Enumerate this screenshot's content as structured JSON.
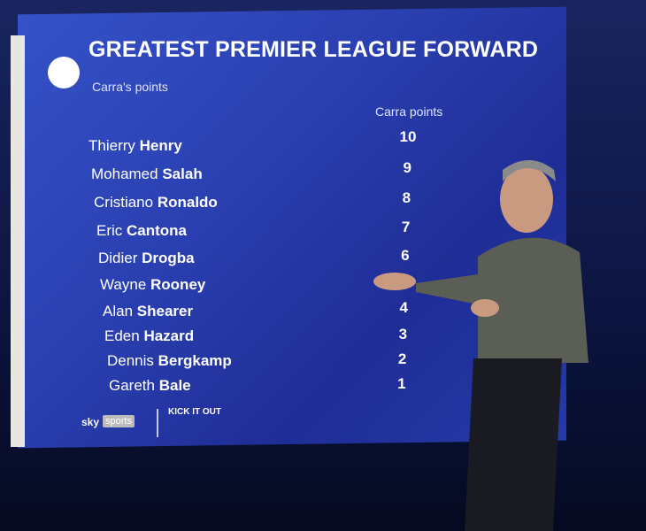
{
  "header": {
    "title": "GREATEST PREMIER LEAGUE FORWARD",
    "subtitle": "Carra's points"
  },
  "table": {
    "column": "Carra points",
    "rows": [
      {
        "first": "Thierry",
        "last": "Henry",
        "points": 10
      },
      {
        "first": "Mohamed",
        "last": "Salah",
        "points": 9
      },
      {
        "first": "Cristiano",
        "last": "Ronaldo",
        "points": 8
      },
      {
        "first": "Eric",
        "last": "Cantona",
        "points": 7
      },
      {
        "first": "Didier",
        "last": "Drogba",
        "points": 6
      },
      {
        "first": "Wayne",
        "last": "Rooney"
      },
      {
        "first": "Alan",
        "last": "Shearer",
        "points": 4
      },
      {
        "first": "Eden",
        "last": "Hazard",
        "points": 3
      },
      {
        "first": "Dennis",
        "last": "Bergkamp",
        "points": 2
      },
      {
        "first": "Gareth",
        "last": "Bale",
        "points": 1
      }
    ]
  },
  "footer": {
    "sky": "sky",
    "sports": "sports",
    "campaign": "KICK IT OUT"
  }
}
